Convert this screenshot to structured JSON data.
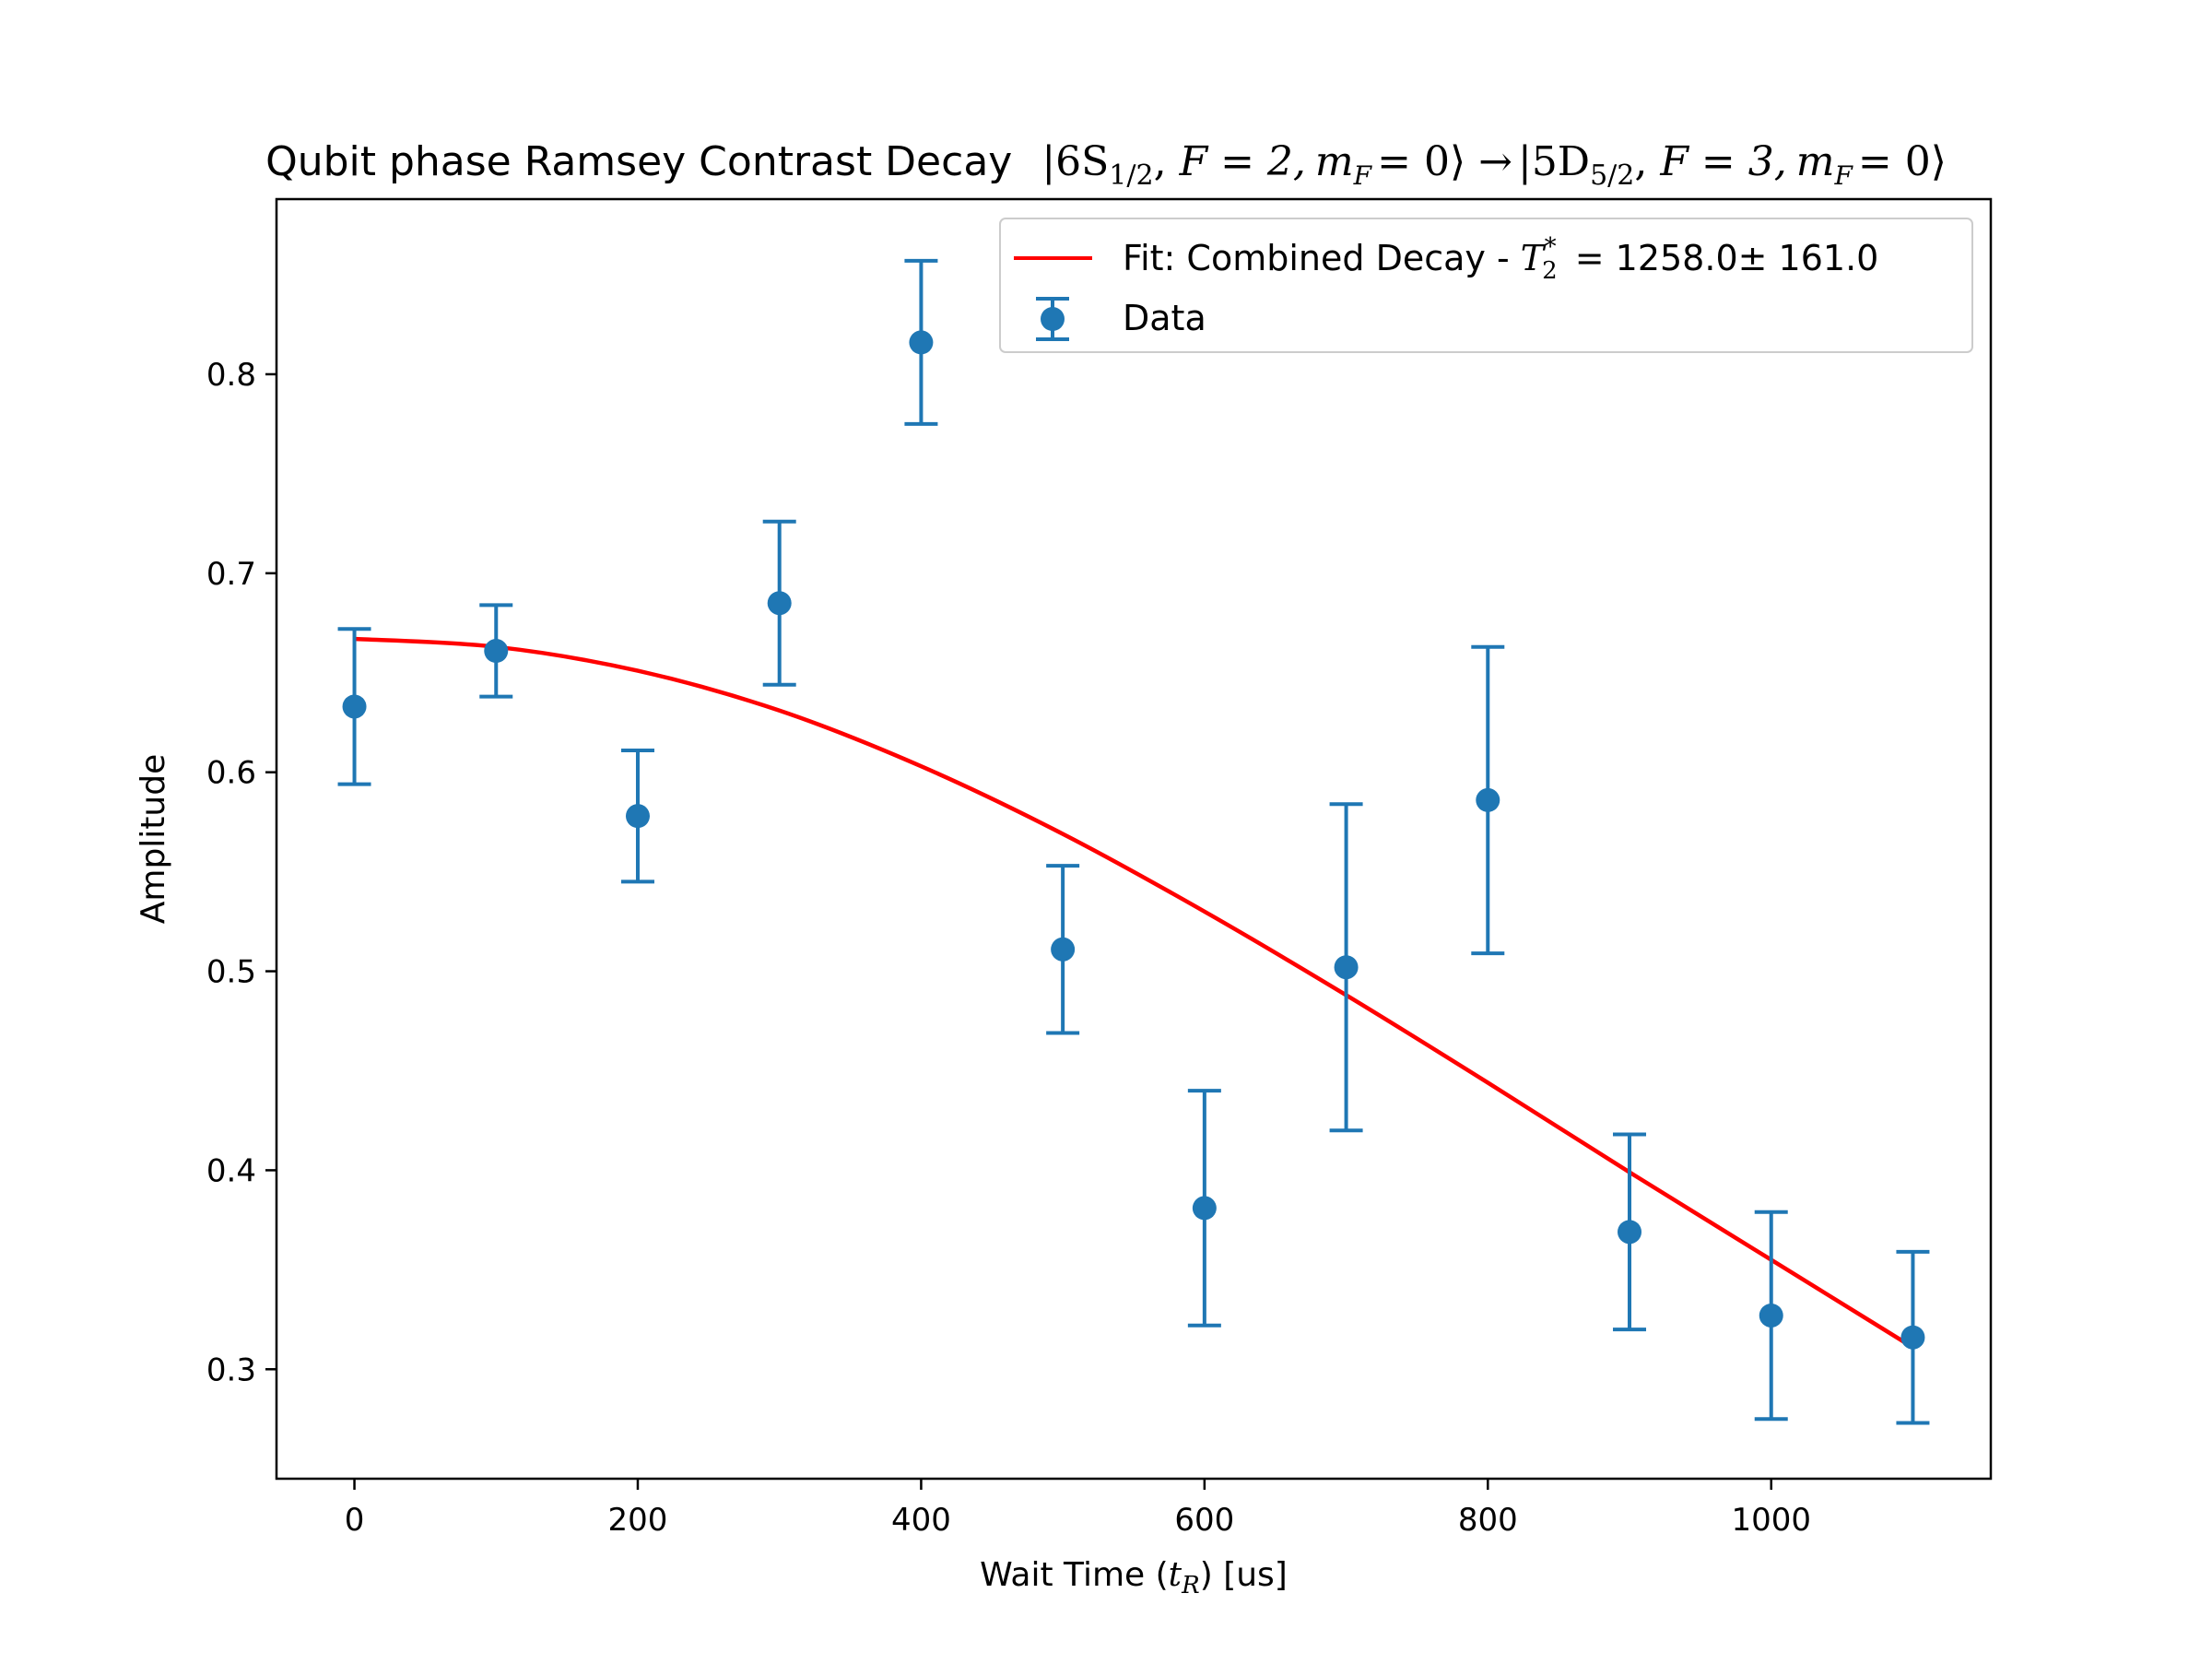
{
  "chart_data": {
    "type": "scatter",
    "title_parts": {
      "prefix": "Qubit phase Ramsey Contrast Decay",
      "ket1_state": "6S",
      "ket1_sub": "1/2",
      "ket1_F": "F = 2,",
      "ket1_mF": "m",
      "ket1_mF_sub": "F",
      "ket1_mF_val": "= 0",
      "arrow": "→",
      "ket2_state": "5D",
      "ket2_sub": "5/2",
      "ket2_F": "F = 3,",
      "ket2_mF": "m",
      "ket2_mF_sub": "F",
      "ket2_mF_val": "= 0"
    },
    "xlabel_parts": {
      "prefix": "Wait Time (",
      "var": "t",
      "sub": "R",
      "suffix": ") [us]"
    },
    "ylabel": "Amplitude",
    "xlim": [
      -55,
      1155
    ],
    "ylim": [
      0.245,
      0.888
    ],
    "x_ticks": [
      0,
      200,
      400,
      600,
      800,
      1000
    ],
    "y_ticks": [
      0.3,
      0.4,
      0.5,
      0.6,
      0.7,
      0.8
    ],
    "x_tick_labels": [
      "0",
      "200",
      "400",
      "600",
      "800",
      "1000"
    ],
    "y_tick_labels": [
      "0.3",
      "0.4",
      "0.5",
      "0.6",
      "0.7",
      "0.8"
    ],
    "legend_position": "upper right",
    "grid": false,
    "series": [
      {
        "name": "Data",
        "kind": "errorbar",
        "color": "#1f77b4",
        "x": [
          0,
          100,
          200,
          300,
          400,
          500,
          600,
          700,
          800,
          900,
          1000,
          1100
        ],
        "y": [
          0.633,
          0.661,
          0.578,
          0.685,
          0.816,
          0.511,
          0.381,
          0.502,
          0.586,
          0.369,
          0.327,
          0.316
        ],
        "yerr": [
          0.039,
          0.023,
          0.033,
          0.041,
          0.041,
          0.042,
          0.059,
          0.082,
          0.077,
          0.049,
          0.052,
          0.043
        ]
      },
      {
        "name_parts": {
          "prefix": "Fit: Combined Decay - ",
          "var": "T",
          "sub": "2",
          "sup": "*",
          "value": " = 1258.0± 161.0"
        },
        "kind": "line",
        "color": "#ff0000",
        "x": [
          0,
          100,
          200,
          300,
          400,
          500,
          600,
          700,
          800,
          900,
          1000,
          1100
        ],
        "y": [
          0.667,
          0.663,
          0.651,
          0.631,
          0.603,
          0.569,
          0.53,
          0.488,
          0.444,
          0.399,
          0.355,
          0.311
        ]
      }
    ]
  }
}
